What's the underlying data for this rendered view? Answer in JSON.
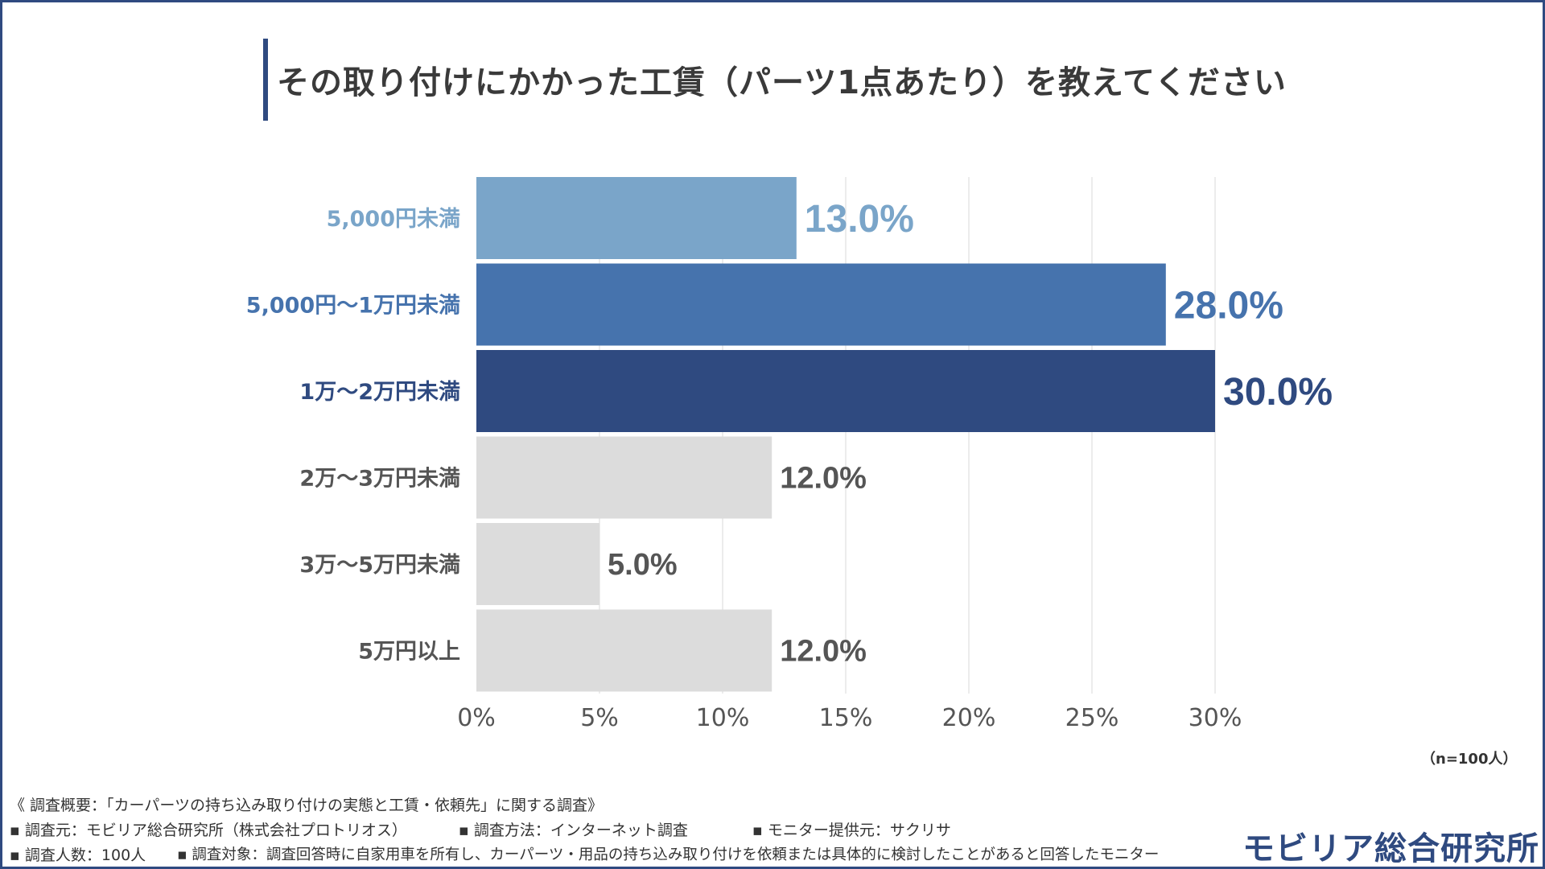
{
  "title": "その取り付けにかかった工賃（パーツ1点あたり）を教えてください",
  "chart_data": {
    "type": "bar",
    "orientation": "horizontal",
    "categories": [
      "5,000円未満",
      "5,000円〜1万円未満",
      "1万〜2万円未満",
      "2万〜3万円未満",
      "3万〜5万円未満",
      "5万円以上"
    ],
    "values": [
      13.0,
      28.0,
      30.0,
      12.0,
      5.0,
      12.0
    ],
    "value_labels": [
      "13.0%",
      "28.0%",
      "30.0%",
      "12.0%",
      "5.0%",
      "12.0%"
    ],
    "xticks": [
      "0%",
      "5%",
      "10%",
      "15%",
      "20%",
      "25%",
      "30%"
    ],
    "xlim": [
      0,
      30
    ],
    "grid": true,
    "colors": [
      "#7aa5c9",
      "#4673ad",
      "#2f4a80",
      "#dcdcdc",
      "#dcdcdc",
      "#dcdcdc"
    ],
    "label_colors": [
      "#7aa5c9",
      "#4673ad",
      "#2f4a80",
      "#555555",
      "#555555",
      "#555555"
    ]
  },
  "sample_note": "（n=100人）",
  "footer": {
    "line1": "《 調査概要：「カーパーツの持ち込み取り付けの実態と工賃・依頼先」に関する調査》",
    "line2a": "▪ 調査元：モビリア総合研究所（株式会社プロトリオス）",
    "line2b": "▪ 調査方法：インターネット調査",
    "line2c": "▪ モニター提供元：サクリサ",
    "line3a": "▪ 調査人数：100人",
    "line3b": "▪ 調査対象：調査回答時に自家用車を所有し、カーパーツ・用品の持ち込み取り付けを依頼または具体的に検討したことがあると回答したモニター"
  },
  "logo_text": "モビリア総合研究所"
}
